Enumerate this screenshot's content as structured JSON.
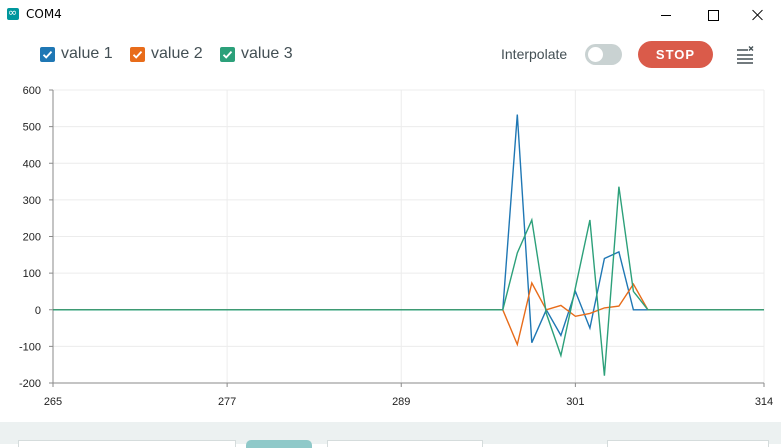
{
  "window": {
    "title": "COM4"
  },
  "legend": [
    {
      "label": "value 1",
      "color": "#1f77b4",
      "checked": true
    },
    {
      "label": "value 2",
      "color": "#e86c1a",
      "checked": true
    },
    {
      "label": "value 3",
      "color": "#2ca07a",
      "checked": true
    }
  ],
  "controls": {
    "interpolate_label": "Interpolate",
    "interpolate_on": false,
    "stop_label": "STOP",
    "stop_color": "#da5b4a"
  },
  "chart_data": {
    "type": "line",
    "xlim": [
      265,
      314
    ],
    "ylim": [
      -200,
      600
    ],
    "x_ticks": [
      "265",
      "277",
      "289",
      "301",
      "314"
    ],
    "y_ticks": [
      "600",
      "500",
      "400",
      "300",
      "200",
      "100",
      "0",
      "-100",
      "-200"
    ],
    "grid": true,
    "series": [
      {
        "name": "value 1",
        "color": "#1f77b4",
        "x": [
          265,
          296,
          297,
          298,
          299,
          300,
          301,
          302,
          303,
          304,
          305,
          306,
          314
        ],
        "y": [
          0,
          0,
          533,
          -90,
          0,
          -70,
          50,
          -50,
          140,
          158,
          0,
          0,
          0
        ]
      },
      {
        "name": "value 2",
        "color": "#e86c1a",
        "x": [
          265,
          296,
          297,
          298,
          299,
          300,
          301,
          302,
          303,
          304,
          305,
          306,
          314
        ],
        "y": [
          0,
          0,
          -95,
          73,
          0,
          12,
          -18,
          -10,
          5,
          10,
          70,
          0,
          0
        ]
      },
      {
        "name": "value 3",
        "color": "#2ca07a",
        "x": [
          265,
          296,
          297,
          298,
          299,
          300,
          301,
          302,
          303,
          304,
          305,
          306,
          314
        ],
        "y": [
          0,
          0,
          155,
          245,
          -10,
          -125,
          60,
          245,
          -180,
          336,
          50,
          0,
          0
        ]
      }
    ]
  }
}
